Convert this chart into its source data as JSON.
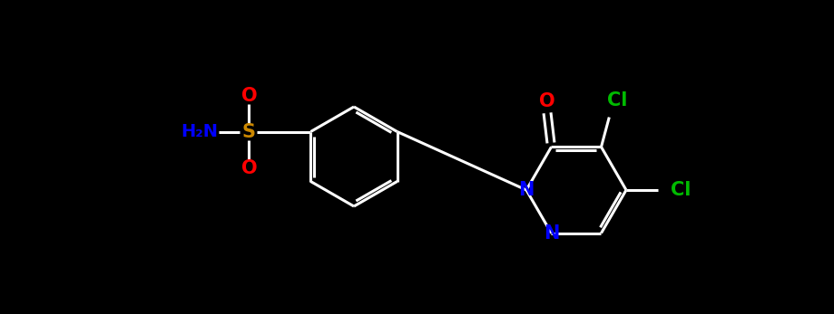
{
  "bg_color": "#000000",
  "bond_color": "#ffffff",
  "bond_width": 2.2,
  "atom_colors": {
    "O": "#ff0000",
    "N": "#0000ff",
    "S": "#cc8800",
    "Cl": "#00bb00",
    "H2N": "#0000ff",
    "C": "#ffffff"
  },
  "fig_width": 9.2,
  "fig_height": 3.47,
  "dpi": 100
}
